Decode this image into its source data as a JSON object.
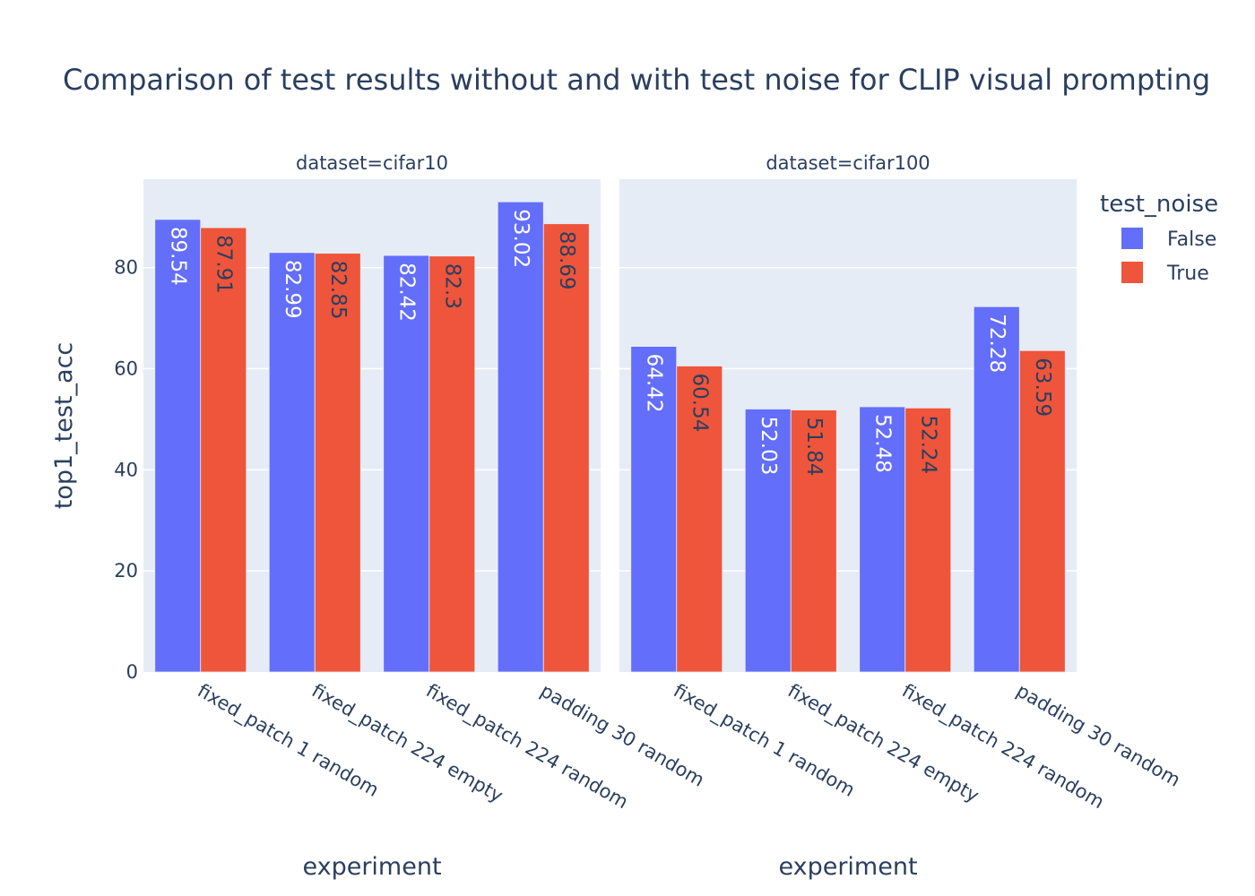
{
  "chart_data": {
    "type": "bar",
    "title": "Comparison of test results without and with test noise for CLIP visual prompting",
    "ylabel": "top1_test_acc",
    "xlabel": "experiment",
    "ylim": [
      0,
      97.5
    ],
    "yticks": [
      0,
      20,
      40,
      60,
      80
    ],
    "grid": true,
    "legend": {
      "title": "test_noise",
      "placement": "top-right",
      "entries": [
        {
          "label": "False",
          "color": "#636efa"
        },
        {
          "label": "True",
          "color": "#ef553b"
        }
      ]
    },
    "categories": [
      "fixed_patch 1 random",
      "fixed_patch 224 empty",
      "fixed_patch 224 random",
      "padding 30 random"
    ],
    "facets": [
      {
        "label": "dataset=cifar10",
        "series": [
          {
            "name": "False",
            "color": "#636efa",
            "values": [
              89.54,
              82.99,
              82.42,
              93.02
            ],
            "labels": [
              "89.54",
              "82.99",
              "82.42",
              "93.02"
            ]
          },
          {
            "name": "True",
            "color": "#ef553b",
            "values": [
              87.91,
              82.85,
              82.3,
              88.69
            ],
            "labels": [
              "87.91",
              "82.85",
              "82.3",
              "88.69"
            ]
          }
        ]
      },
      {
        "label": "dataset=cifar100",
        "series": [
          {
            "name": "False",
            "color": "#636efa",
            "values": [
              64.42,
              52.03,
              52.48,
              72.28
            ],
            "labels": [
              "64.42",
              "52.03",
              "52.48",
              "72.28"
            ]
          },
          {
            "name": "True",
            "color": "#ef553b",
            "values": [
              60.54,
              51.84,
              52.24,
              63.59
            ],
            "labels": [
              "60.54",
              "51.84",
              "52.24",
              "63.59"
            ]
          }
        ]
      }
    ]
  }
}
